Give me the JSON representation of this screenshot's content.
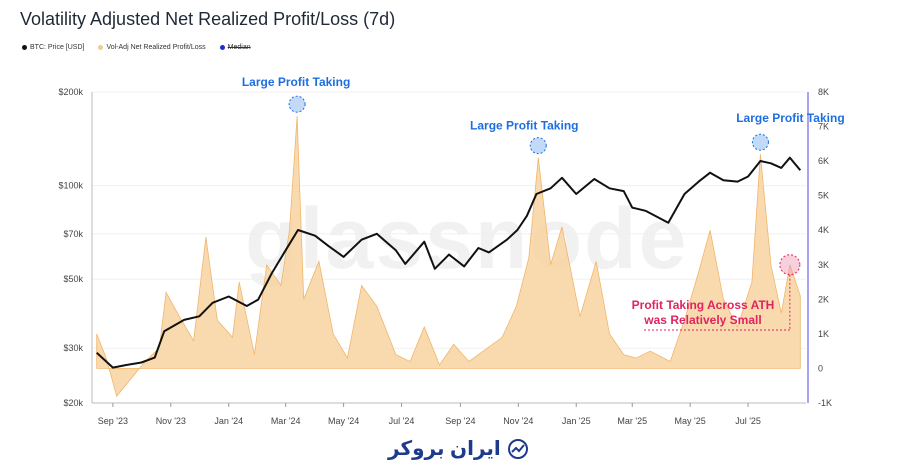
{
  "title": "Volatility Adjusted Net Realized Profit/Loss (7d)",
  "legend": [
    {
      "label": "BTC: Price [USD]",
      "color": "#111111"
    },
    {
      "label": "Vol-Adj Net Realized Profit/Loss",
      "color": "#f5c98a"
    },
    {
      "label": "Median",
      "color": "#1d2bd6"
    }
  ],
  "watermark": "glassnode",
  "brand": "ایران بروکر",
  "colors": {
    "price": "#111111",
    "profit_fill": "#f8d3a1",
    "profit_line": "#f1b56b",
    "annot_blue": "#1d6fe0",
    "annot_pink": "#e0245e",
    "right_axis": "#4f46e5"
  },
  "chart_data": {
    "type": "area",
    "x_ticks": [
      "Sep '23",
      "Nov '23",
      "Jan '24",
      "Mar '24",
      "May '24",
      "Jul '24",
      "Sep '24",
      "Nov '24",
      "Jan '25",
      "Mar '25",
      "May '25",
      "Jul '25"
    ],
    "left_axis": {
      "scale": "log",
      "ticks": [
        "$200k",
        "$100k",
        "$70k",
        "$50k",
        "$30k",
        "$20k"
      ]
    },
    "right_axis": {
      "ticks": [
        "8K",
        "7K",
        "6K",
        "5K",
        "4K",
        "3K",
        "2K",
        "1K",
        "0",
        "-1K"
      ],
      "range": [
        -1000,
        8000
      ]
    },
    "series": [
      {
        "name": "BTC: Price [USD]",
        "axis": "left",
        "points": [
          [
            "2023-08-15",
            29000
          ],
          [
            "2023-09-01",
            26000
          ],
          [
            "2023-09-15",
            26500
          ],
          [
            "2023-10-01",
            27000
          ],
          [
            "2023-10-15",
            28000
          ],
          [
            "2023-10-25",
            34000
          ],
          [
            "2023-11-15",
            37000
          ],
          [
            "2023-12-01",
            38000
          ],
          [
            "2023-12-15",
            42000
          ],
          [
            "2024-01-01",
            44000
          ],
          [
            "2024-01-20",
            41000
          ],
          [
            "2024-02-01",
            43000
          ],
          [
            "2024-02-15",
            52000
          ],
          [
            "2024-03-01",
            62000
          ],
          [
            "2024-03-14",
            72000
          ],
          [
            "2024-04-01",
            69000
          ],
          [
            "2024-04-15",
            64000
          ],
          [
            "2024-05-01",
            59000
          ],
          [
            "2024-05-20",
            67000
          ],
          [
            "2024-06-05",
            70000
          ],
          [
            "2024-06-25",
            62000
          ],
          [
            "2024-07-05",
            56000
          ],
          [
            "2024-07-25",
            66000
          ],
          [
            "2024-08-05",
            54000
          ],
          [
            "2024-08-20",
            60000
          ],
          [
            "2024-09-05",
            55000
          ],
          [
            "2024-09-20",
            63000
          ],
          [
            "2024-10-01",
            61000
          ],
          [
            "2024-10-20",
            67000
          ],
          [
            "2024-10-31",
            72000
          ],
          [
            "2024-11-10",
            80000
          ],
          [
            "2024-11-20",
            94000
          ],
          [
            "2024-12-05",
            98000
          ],
          [
            "2024-12-17",
            106000
          ],
          [
            "2025-01-01",
            94000
          ],
          [
            "2025-01-20",
            105000
          ],
          [
            "2025-02-05",
            98000
          ],
          [
            "2025-02-20",
            96000
          ],
          [
            "2025-03-01",
            85000
          ],
          [
            "2025-03-15",
            83000
          ],
          [
            "2025-04-08",
            76000
          ],
          [
            "2025-04-25",
            94000
          ],
          [
            "2025-05-10",
            103000
          ],
          [
            "2025-05-22",
            110000
          ],
          [
            "2025-06-05",
            104000
          ],
          [
            "2025-06-20",
            103000
          ],
          [
            "2025-07-01",
            107000
          ],
          [
            "2025-07-14",
            120000
          ],
          [
            "2025-07-25",
            118000
          ],
          [
            "2025-08-05",
            114000
          ],
          [
            "2025-08-14",
            123000
          ],
          [
            "2025-08-25",
            112000
          ]
        ]
      },
      {
        "name": "Vol-Adj Net Realized Profit/Loss",
        "axis": "right",
        "points": [
          [
            "2023-08-15",
            1000
          ],
          [
            "2023-08-25",
            300
          ],
          [
            "2023-09-05",
            -800
          ],
          [
            "2023-09-20",
            -300
          ],
          [
            "2023-10-05",
            200
          ],
          [
            "2023-10-20",
            600
          ],
          [
            "2023-10-27",
            2200
          ],
          [
            "2023-11-10",
            1500
          ],
          [
            "2023-11-25",
            800
          ],
          [
            "2023-12-08",
            3800
          ],
          [
            "2023-12-20",
            1400
          ],
          [
            "2024-01-05",
            900
          ],
          [
            "2024-01-12",
            2500
          ],
          [
            "2024-01-28",
            400
          ],
          [
            "2024-02-10",
            3000
          ],
          [
            "2024-02-25",
            2400
          ],
          [
            "2024-03-05",
            4000
          ],
          [
            "2024-03-13",
            7300
          ],
          [
            "2024-03-20",
            2000
          ],
          [
            "2024-04-05",
            3100
          ],
          [
            "2024-04-20",
            1000
          ],
          [
            "2024-05-05",
            300
          ],
          [
            "2024-05-20",
            2400
          ],
          [
            "2024-06-05",
            1800
          ],
          [
            "2024-06-25",
            400
          ],
          [
            "2024-07-10",
            200
          ],
          [
            "2024-07-25",
            1200
          ],
          [
            "2024-08-10",
            100
          ],
          [
            "2024-08-25",
            700
          ],
          [
            "2024-09-10",
            200
          ],
          [
            "2024-09-25",
            500
          ],
          [
            "2024-10-15",
            900
          ],
          [
            "2024-10-30",
            1800
          ],
          [
            "2024-11-12",
            3200
          ],
          [
            "2024-11-22",
            6100
          ],
          [
            "2024-12-05",
            3000
          ],
          [
            "2024-12-17",
            4100
          ],
          [
            "2025-01-05",
            1500
          ],
          [
            "2025-01-22",
            3100
          ],
          [
            "2025-02-05",
            1000
          ],
          [
            "2025-02-20",
            400
          ],
          [
            "2025-03-05",
            300
          ],
          [
            "2025-03-20",
            500
          ],
          [
            "2025-04-10",
            200
          ],
          [
            "2025-04-25",
            1400
          ],
          [
            "2025-05-10",
            2800
          ],
          [
            "2025-05-22",
            4000
          ],
          [
            "2025-06-05",
            2000
          ],
          [
            "2025-06-20",
            1200
          ],
          [
            "2025-07-05",
            2500
          ],
          [
            "2025-07-14",
            6200
          ],
          [
            "2025-07-25",
            3000
          ],
          [
            "2025-08-05",
            1600
          ],
          [
            "2025-08-14",
            3000
          ],
          [
            "2025-08-25",
            2100
          ]
        ]
      }
    ],
    "annotations": [
      {
        "text": "Large Profit Taking",
        "x": "2024-03-13",
        "y": 7300,
        "color": "blue"
      },
      {
        "text": "Large Profit Taking",
        "x": "2024-11-22",
        "y": 6100,
        "color": "blue"
      },
      {
        "text": "Large Profit Taking",
        "x": "2025-07-14",
        "y": 6200,
        "color": "blue"
      },
      {
        "text": "Profit Taking Across ATH",
        "x": "2025-08-14",
        "y": 3000,
        "color": "pink"
      },
      {
        "text": "was Relatively Small",
        "x": "2025-08-14",
        "y": 3000,
        "color": "pink"
      }
    ]
  }
}
